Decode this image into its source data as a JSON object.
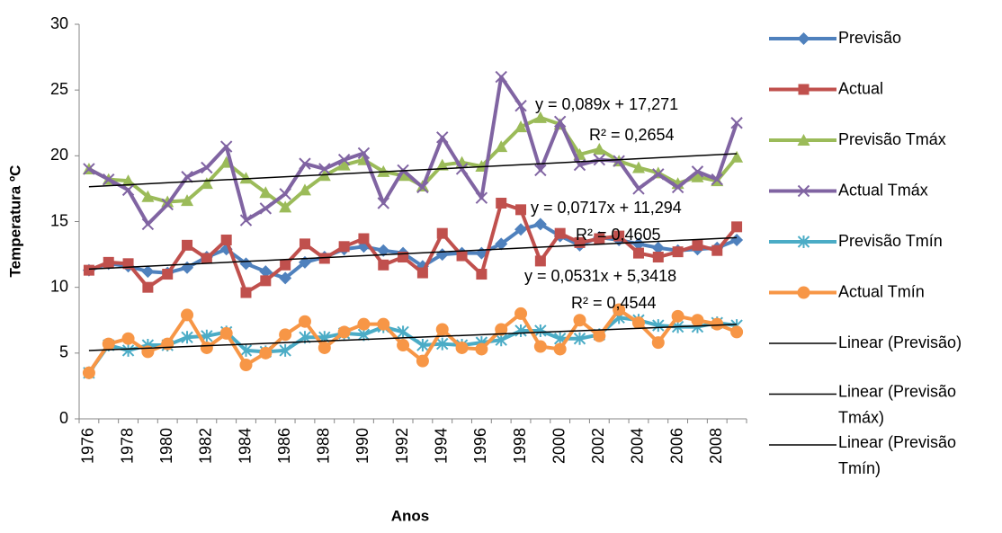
{
  "chart_data": {
    "type": "line",
    "x_label": "Anos",
    "y_label": "Temperatura ºC",
    "categories": [
      "1976",
      null,
      "1978",
      null,
      "1980",
      null,
      "1982",
      null,
      "1984",
      null,
      "1986",
      null,
      "1988",
      null,
      "1990",
      null,
      "1992",
      null,
      "1994",
      null,
      "1996",
      null,
      "1998",
      null,
      "2000",
      null,
      "2002",
      null,
      "2004",
      null,
      "2006",
      null,
      "2008",
      null
    ],
    "ylim": [
      0,
      30
    ],
    "yticks": [
      0,
      5,
      10,
      15,
      20,
      25,
      30
    ],
    "grid": false,
    "legend": "right",
    "series": [
      {
        "name": "Previsão",
        "color": "#4F81BD",
        "marker": "diamond",
        "values": [
          11.3,
          11.8,
          11.6,
          11.2,
          11.1,
          11.5,
          12.3,
          12.9,
          11.8,
          11.2,
          10.7,
          11.9,
          12.3,
          12.9,
          13.1,
          12.8,
          12.6,
          11.6,
          12.5,
          12.6,
          12.6,
          13.3,
          14.4,
          14.8,
          13.9,
          13.2,
          13.8,
          13.6,
          13.3,
          13.0,
          12.8,
          12.9,
          13.0,
          13.6
        ],
        "trendline": {
          "name": "Linear (Previsão)",
          "equation": "y = 0,0717x + 11,294",
          "r_squared": "R² = 0,4605"
        }
      },
      {
        "name": "Actual",
        "color": "#C0504D",
        "marker": "square",
        "values": [
          11.3,
          11.9,
          11.8,
          10.0,
          11.0,
          13.2,
          12.2,
          13.6,
          9.6,
          10.5,
          11.7,
          13.3,
          12.2,
          13.1,
          13.7,
          11.7,
          12.3,
          11.1,
          14.1,
          12.4,
          11.0,
          16.4,
          15.9,
          12.0,
          14.1,
          13.4,
          13.7,
          13.9,
          12.6,
          12.3,
          12.7,
          13.2,
          12.8,
          14.6
        ]
      },
      {
        "name": "Previsão Tmáx",
        "color": "#9BBB59",
        "marker": "triangle",
        "values": [
          19.0,
          18.2,
          18.1,
          16.9,
          16.5,
          16.6,
          17.9,
          19.5,
          18.3,
          17.2,
          16.1,
          17.4,
          18.5,
          19.3,
          19.7,
          18.8,
          18.5,
          17.7,
          19.3,
          19.5,
          19.2,
          20.7,
          22.2,
          22.9,
          22.4,
          20.1,
          20.5,
          19.6,
          19.1,
          18.7,
          17.9,
          18.4,
          18.1,
          19.9
        ],
        "trendline": {
          "name": "Linear (Previsão Tmáx)",
          "equation": "y = 0,089x + 17,271",
          "r_squared": "R² = 0,2654"
        }
      },
      {
        "name": "Actual Tmáx",
        "color": "#8064A2",
        "marker": "x",
        "values": [
          19.0,
          18.2,
          17.4,
          14.8,
          16.3,
          18.4,
          19.1,
          20.7,
          15.1,
          16.0,
          17.1,
          19.4,
          19.0,
          19.7,
          20.2,
          16.4,
          18.9,
          17.6,
          21.4,
          19.0,
          16.8,
          26.0,
          23.8,
          18.9,
          22.6,
          19.3,
          19.7,
          19.6,
          17.5,
          18.6,
          17.6,
          18.8,
          18.2,
          22.5
        ]
      },
      {
        "name": "Previsão Tmín",
        "color": "#4BACC6",
        "marker": "star",
        "values": [
          3.5,
          5.6,
          5.2,
          5.6,
          5.6,
          6.2,
          6.3,
          6.6,
          5.2,
          5.1,
          5.2,
          6.2,
          6.2,
          6.5,
          6.4,
          7.0,
          6.6,
          5.6,
          5.7,
          5.6,
          5.8,
          6.0,
          6.7,
          6.7,
          6.1,
          6.1,
          6.4,
          7.7,
          7.5,
          7.1,
          7.0,
          7.0,
          7.3,
          7.1
        ],
        "trendline": {
          "name": "Linear (Previsão Tmín)",
          "equation": "y = 0,0531x + 5,3418",
          "r_squared": "R² = 0,4544"
        }
      },
      {
        "name": "Actual Tmín",
        "color": "#F79646",
        "marker": "circle",
        "values": [
          3.5,
          5.7,
          6.1,
          5.1,
          5.7,
          7.9,
          5.4,
          6.5,
          4.1,
          5.0,
          6.4,
          7.4,
          5.4,
          6.6,
          7.2,
          7.2,
          5.6,
          4.4,
          6.8,
          5.4,
          5.3,
          6.8,
          8.0,
          5.5,
          5.3,
          7.5,
          6.3,
          8.3,
          7.3,
          5.8,
          7.8,
          7.5,
          7.2,
          6.6
        ]
      }
    ]
  }
}
